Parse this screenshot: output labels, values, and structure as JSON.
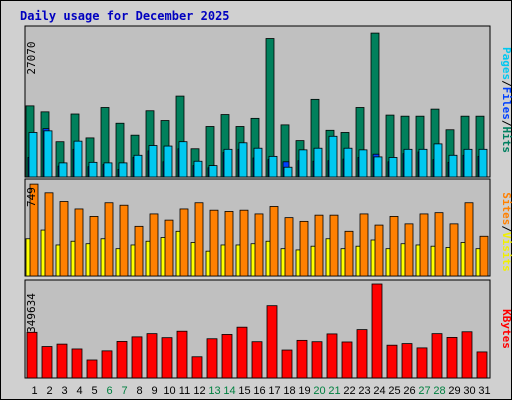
{
  "chart_data": {
    "type": "bar",
    "title": "Daily usage for December 2025",
    "categories": [
      "1",
      "2",
      "3",
      "4",
      "5",
      "6",
      "7",
      "8",
      "9",
      "10",
      "11",
      "12",
      "13",
      "14",
      "15",
      "16",
      "17",
      "18",
      "19",
      "20",
      "21",
      "22",
      "23",
      "24",
      "25",
      "26",
      "27",
      "28",
      "29",
      "30",
      "31"
    ],
    "weekend_days": [
      "6",
      "7",
      "13",
      "14",
      "20",
      "21",
      "27",
      "28"
    ],
    "panels": [
      {
        "name": "hits-files-pages",
        "ymax": 27070,
        "ymax_label": "27070",
        "legend": [
          {
            "text": "Pages",
            "color": "#00c8f0"
          },
          {
            "text": "/",
            "color": "#000000"
          },
          {
            "text": "Files",
            "color": "#0040ff"
          },
          {
            "text": "/",
            "color": "#000000"
          },
          {
            "text": "Hits",
            "color": "#008060"
          }
        ],
        "series": [
          {
            "name": "Hits",
            "color": "#00805c",
            "values": [
              13100,
              12000,
              6500,
              11600,
              7200,
              12800,
              9900,
              7700,
              12200,
              10400,
              14900,
              5200,
              9300,
              11500,
              9300,
              10800,
              25500,
              9600,
              6700,
              14300,
              8600,
              8200,
              12800,
              26500,
              11400,
              11200,
              11200,
              12500,
              8700,
              11200,
              11200
            ]
          },
          {
            "name": "Files",
            "color": "#0040ff",
            "values": [
              3600,
              8900,
              2000,
              5100,
              1900,
              2300,
              1400,
              3600,
              4800,
              2800,
              5200,
              2100,
              1700,
              4500,
              5100,
              3500,
              3200,
              2800,
              3000,
              2900,
              3000,
              3300,
              3600,
              4200,
              2800,
              4300,
              4600,
              3200,
              2700,
              4000,
              3800
            ]
          },
          {
            "name": "Pages",
            "color": "#00c8f0",
            "values": [
              8200,
              8500,
              2600,
              6600,
              2700,
              2600,
              2600,
              4000,
              5800,
              5700,
              6500,
              2900,
              2100,
              5100,
              6300,
              5300,
              3800,
              1800,
              5000,
              5300,
              7500,
              5300,
              5000,
              3700,
              3600,
              5100,
              5100,
              6100,
              4000,
              5100,
              5100
            ]
          }
        ]
      },
      {
        "name": "visits-sites",
        "ymax": 749,
        "ymax_label": "749",
        "legend": [
          {
            "text": "Sites",
            "color": "#ff8000"
          },
          {
            "text": "/",
            "color": "#000000"
          },
          {
            "text": "Visits",
            "color": "#f0f000"
          }
        ],
        "series": [
          {
            "name": "Visits",
            "color": "#ffff00",
            "values": [
              300,
              370,
              250,
              280,
              260,
              300,
              220,
              250,
              280,
              310,
              360,
              270,
              200,
              250,
              250,
              260,
              280,
              220,
              210,
              240,
              300,
              220,
              240,
              290,
              220,
              260,
              250,
              240,
              230,
              270,
              220
            ]
          },
          {
            "name": "Sites",
            "color": "#ff8000",
            "values": [
              740,
              670,
              600,
              540,
              480,
              590,
              570,
              400,
              500,
              450,
              540,
              590,
              530,
              520,
              530,
              500,
              560,
              470,
              440,
              490,
              490,
              360,
              500,
              410,
              480,
              420,
              500,
              510,
              420,
              590,
              320
            ]
          }
        ]
      },
      {
        "name": "kbytes",
        "ymax": 349634,
        "ymax_label": "349634",
        "legend": [
          {
            "text": "KBytes",
            "color": "#ff0000"
          }
        ],
        "series": [
          {
            "name": "KBytes",
            "color": "#ff0000",
            "values": [
              170000,
              117000,
              126000,
              108000,
              67000,
              101000,
              136000,
              153000,
              165000,
              150000,
              174000,
              79000,
              146000,
              162000,
              189000,
              135000,
              269000,
              104000,
              140000,
              135000,
              164000,
              134000,
              180000,
              349634,
              122000,
              128000,
              112000,
              165000,
              151000,
              172000,
              97000
            ]
          }
        ]
      }
    ],
    "colors": {
      "plot_bg": "#c0c0c0",
      "weekday_label": "#000000",
      "weekend_label": "#008040",
      "title": "#0000c0"
    }
  }
}
